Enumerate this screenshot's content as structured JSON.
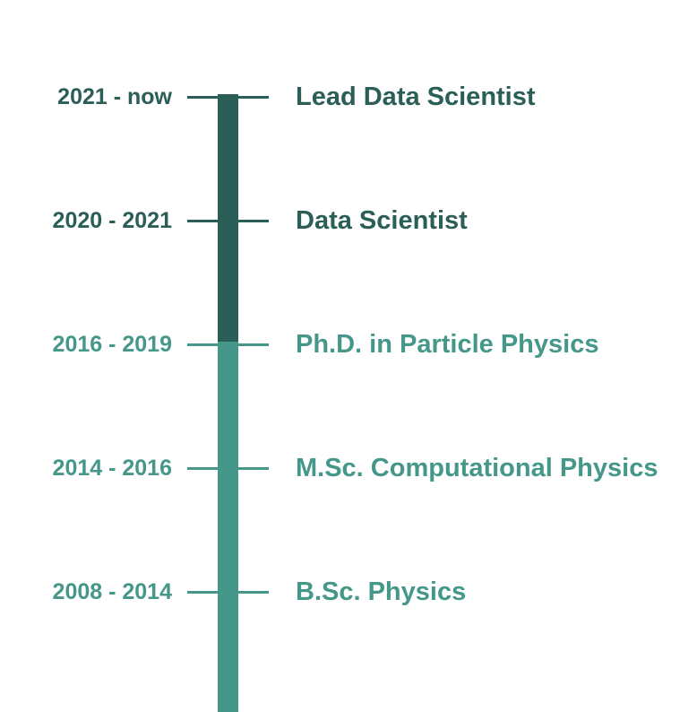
{
  "colors": {
    "current": "#2a5e57",
    "education": "#45978a"
  },
  "entries": [
    {
      "period": "2021 - now",
      "title": "Lead Data Scientist",
      "group": "current"
    },
    {
      "period": "2020 - 2021",
      "title": "Data Scientist",
      "group": "current"
    },
    {
      "period": "2016 - 2019",
      "title": "Ph.D. in Particle Physics",
      "group": "education"
    },
    {
      "period": "2014 - 2016",
      "title": "M.Sc. Computational Physics",
      "group": "education"
    },
    {
      "period": "2008 - 2014",
      "title": "B.Sc. Physics",
      "group": "education"
    }
  ]
}
